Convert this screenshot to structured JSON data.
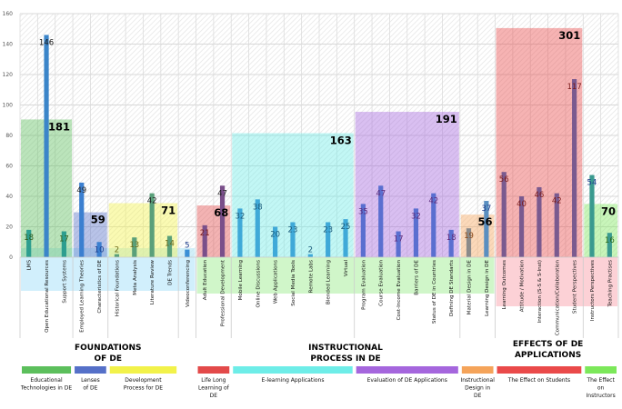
{
  "chart_data": {
    "type": "bar",
    "title": "",
    "xlabel": "",
    "ylabel": "",
    "ylim": [
      0,
      160
    ],
    "yticks": [
      0,
      20,
      40,
      60,
      80,
      100,
      120,
      140,
      160
    ],
    "grid": true,
    "categories": [
      "LMS",
      "Open Educational Resources",
      "Support Systems",
      "Employed Learning Theories",
      "Characteristics of DE",
      "Historical Foundations",
      "Meta Analysis",
      "Literature Review",
      "DE Trends",
      "Videoconferencing",
      "Adult Education",
      "Professional Development",
      "Mobile Learning",
      "Online Discussions",
      "Web Applications",
      "Social Media Tools",
      "Remote Labs",
      "Blended Learning",
      "Virtual",
      "Program Evaluation",
      "Course Evaluation",
      "Cost-Income Evaluation",
      "Barriers of DE",
      "Status of DE in Countries",
      "Defining DE Standarts",
      "Material Design in DE",
      "Learning Design in DE",
      "Learning Outcomes",
      "Attitude / Motivation",
      "Interaction (S-S & S-Inst)",
      "Communication/Collaboration",
      "Student Perspectives",
      "Instructors Perspectives",
      "Teaching Practises"
    ],
    "values": [
      18,
      146,
      17,
      49,
      10,
      2,
      13,
      42,
      14,
      5,
      21,
      47,
      32,
      38,
      20,
      23,
      2,
      23,
      25,
      35,
      47,
      17,
      32,
      42,
      18,
      19,
      37,
      56,
      40,
      46,
      42,
      117,
      54,
      16
    ],
    "bar_colors": [
      "#2e9e8f",
      "#3b85c9",
      "#2e9e8f",
      "#3b7fd0",
      "#3b7fd0",
      "#5aa07a",
      "#5aa07a",
      "#5aa07a",
      "#5aa07a",
      "#3b8fd6",
      "#7a4f8a",
      "#7a4f8a",
      "#3fa9d8",
      "#3fa9d8",
      "#3fa9d8",
      "#3fa9d8",
      "#3fa9d8",
      "#3fa9d8",
      "#3fa9d8",
      "#5a6fd0",
      "#5a6fd0",
      "#5a6fd0",
      "#5a6fd0",
      "#5a6fd0",
      "#5a6fd0",
      "#8a8a8a",
      "#5a8fc0",
      "#7a5a8f",
      "#7a5a8f",
      "#7a5a8f",
      "#7a5a8f",
      "#7a5a8f",
      "#3a9a8f",
      "#3a9a8f"
    ],
    "label_colors": [
      "#2a5a1a",
      "#111111",
      "#2a5a1a",
      "#222222",
      "#1a3a8a",
      "#6a6a1a",
      "#6a6a1a",
      "#222222",
      "#6a6a1a",
      "#1a3a8a",
      "#7a1a1a",
      "#222222",
      "#1a5a7a",
      "#1a5a7a",
      "#1a5a7a",
      "#1a5a7a",
      "#1a5a7a",
      "#1a5a7a",
      "#1a5a7a",
      "#5a2a7a",
      "#5a2a7a",
      "#5a2a7a",
      "#5a2a7a",
      "#5a2a7a",
      "#5a2a7a",
      "#8a4a1a",
      "#1a3a8a",
      "#7a1a1a",
      "#7a1a1a",
      "#7a1a1a",
      "#7a1a1a",
      "#7a1a1a",
      "#1a3a8a",
      "#2a6a1a"
    ],
    "groups": [
      {
        "name": "Educational Technologies in DE",
        "total": 181,
        "start": 0,
        "end": 2,
        "color": "#5cbf5c"
      },
      {
        "name": "Lenses of DE",
        "total": 59,
        "start": 3,
        "end": 4,
        "color": "#5570c8"
      },
      {
        "name": "Development Process for DE",
        "total": 71,
        "start": 5,
        "end": 8,
        "color": "#f2f24a"
      },
      {
        "name": "Life Long Learning of DE",
        "total": 68,
        "start": 10,
        "end": 11,
        "color": "#e34a4a"
      },
      {
        "name": "E-learning Applications",
        "total": 163,
        "start": 12,
        "end": 18,
        "color": "#6eede8"
      },
      {
        "name": "Evaluation of DE Applications",
        "total": 191,
        "start": 19,
        "end": 24,
        "color": "#a566dd"
      },
      {
        "name": "Instructional Design in DE",
        "total": 56,
        "start": 25,
        "end": 26,
        "color": "#f5a45a"
      },
      {
        "name": "The Effect on Students",
        "total": 301,
        "start": 27,
        "end": 31,
        "color": "#ea4a4a"
      },
      {
        "name": "The Effect on Instructors",
        "total": 70,
        "start": 32,
        "end": 33,
        "color": "#7ce85a"
      }
    ],
    "sections": [
      {
        "name": "FOUNDATIONS OF DE",
        "lines": [
          "FOUNDATIONS",
          "OF DE"
        ]
      },
      {
        "name": "INSTRUCTIONAL PROCESS IN DE",
        "lines": [
          "INSTRUCTIONAL",
          "PROCESS IN DE"
        ]
      },
      {
        "name": "EFFECTS OF DE APPLICATIONS",
        "lines": [
          "EFFECTS OF DE",
          "APPLICATIONS"
        ]
      }
    ],
    "legend": [
      {
        "label_lines": [
          "Educational",
          "Technologies in DE"
        ],
        "color": "#5cbf5c"
      },
      {
        "label_lines": [
          "Lenses",
          "of DE"
        ],
        "color": "#5570c8"
      },
      {
        "label_lines": [
          "Development",
          "Process for DE"
        ],
        "color": "#f2f24a"
      },
      {
        "label_lines": [
          "Life Long",
          "Learning of",
          "DE"
        ],
        "color": "#e34a4a"
      },
      {
        "label_lines": [
          "E-learning Applications"
        ],
        "color": "#6eede8"
      },
      {
        "label_lines": [
          "Evaluation of DE Applications"
        ],
        "color": "#a566dd"
      },
      {
        "label_lines": [
          "Instructional",
          "Design in",
          "DE"
        ],
        "color": "#f5a45a"
      },
      {
        "label_lines": [
          "The Effect on Students"
        ],
        "color": "#ea4a4a"
      },
      {
        "label_lines": [
          "The Effect",
          "on",
          "Instructors"
        ],
        "color": "#7ce85a"
      }
    ],
    "category_band_colors": {
      "foundations": "#c9ecfb",
      "instructional": "#c8f5c0",
      "effects": "#fbc9cf"
    }
  }
}
